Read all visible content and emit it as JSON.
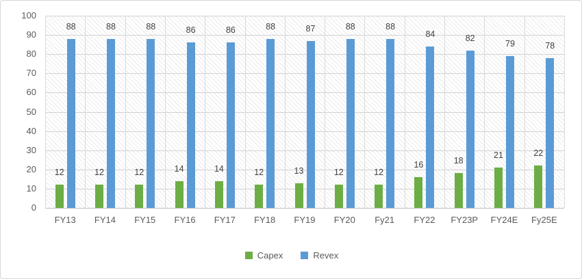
{
  "chart_data": {
    "type": "bar",
    "title": "",
    "xlabel": "",
    "ylabel": "",
    "categories": [
      "FY13",
      "FY14",
      "FY15",
      "FY16",
      "FY17",
      "FY18",
      "FY19",
      "FY20",
      "Fy21",
      "FY22",
      "FY23P",
      "FY24E",
      "Fy25E"
    ],
    "series": [
      {
        "name": "Capex",
        "color": "#6cae45",
        "values": [
          12,
          12,
          12,
          14,
          14,
          12,
          13,
          12,
          12,
          16,
          18,
          21,
          22
        ]
      },
      {
        "name": "Revex",
        "color": "#5b9bd5",
        "values": [
          88,
          88,
          88,
          86,
          86,
          88,
          87,
          88,
          88,
          84,
          82,
          79,
          78
        ]
      }
    ],
    "ylim": [
      0,
      100
    ],
    "yticks": [
      0,
      10,
      20,
      30,
      40,
      50,
      60,
      70,
      80,
      90,
      100
    ],
    "grid": true,
    "plot_background": "diagonal-hatch",
    "data_labels": true,
    "legend_position": "bottom",
    "colors": {
      "gridline": "#d2d2d2",
      "axis_line": "#bfbfbf",
      "tick_label": "#595959",
      "data_label": "#404040",
      "frame_border": "#d6d6d6"
    }
  }
}
